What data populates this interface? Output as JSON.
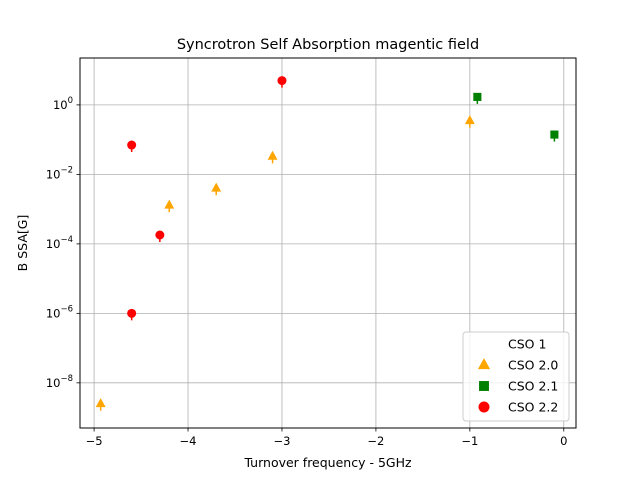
{
  "chart_data": {
    "type": "scatter",
    "title": "Syncrotron Self Absorption magentic field",
    "xlabel": "Turnover frequency - 5GHz",
    "ylabel": "B SSA[G]",
    "xlim": [
      -5.15,
      0.13
    ],
    "ylim_log10": [
      -9.3,
      1.35
    ],
    "yscale": "log",
    "grid": true,
    "legend_position": "lower-right",
    "x_ticks": [
      -5,
      -4,
      -3,
      -2,
      -1,
      0
    ],
    "x_tick_labels": [
      "−5",
      "−4",
      "−3",
      "−2",
      "−1",
      "0"
    ],
    "y_ticks_log10": [
      -8,
      -6,
      -4,
      -2,
      0
    ],
    "y_tick_labels": [
      {
        "base": "10",
        "exp": "−8"
      },
      {
        "base": "10",
        "exp": "−6"
      },
      {
        "base": "10",
        "exp": "−4"
      },
      {
        "base": "10",
        "exp": "−2"
      },
      {
        "base": "10",
        "exp": "0"
      }
    ],
    "series": [
      {
        "name": "CSO 1",
        "marker": "none",
        "color": "#ffffff",
        "points": []
      },
      {
        "name": "CSO 2.0",
        "marker": "triangle",
        "color": "#ffa500",
        "points": [
          {
            "x": -4.93,
            "y": 2.5e-09
          },
          {
            "x": -4.2,
            "y": 0.0013
          },
          {
            "x": -3.7,
            "y": 0.004
          },
          {
            "x": -3.1,
            "y": 0.033
          },
          {
            "x": -1.0,
            "y": 0.35
          }
        ]
      },
      {
        "name": "CSO 2.1",
        "marker": "square",
        "color": "#008000",
        "points": [
          {
            "x": -0.92,
            "y": 1.7
          },
          {
            "x": -0.1,
            "y": 0.14
          }
        ]
      },
      {
        "name": "CSO 2.2",
        "marker": "circle",
        "color": "#ff0000",
        "points": [
          {
            "x": -4.6,
            "y": 0.07
          },
          {
            "x": -4.3,
            "y": 0.00018
          },
          {
            "x": -4.6,
            "y": 1e-06
          },
          {
            "x": -3.0,
            "y": 5.0
          }
        ]
      }
    ]
  }
}
